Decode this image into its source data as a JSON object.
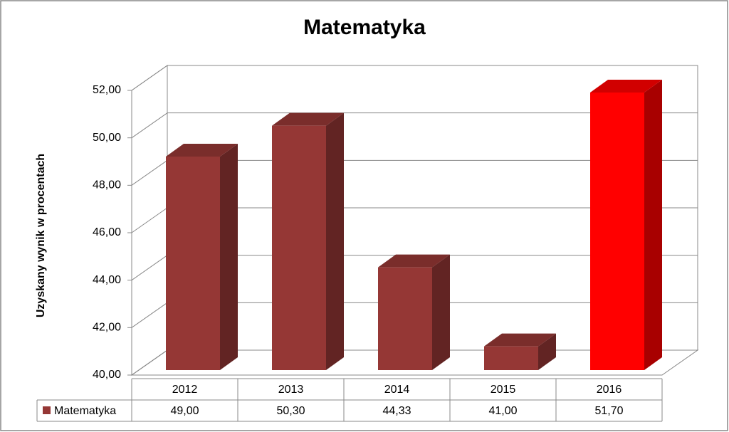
{
  "chart_data": {
    "type": "bar3d",
    "title": "Matematyka",
    "y_label": "Uzyskany wynik w procentach",
    "categories": [
      "2012",
      "2013",
      "2014",
      "2015",
      "2016"
    ],
    "series": [
      {
        "name": "Matematyka",
        "colors": [
          "#953735",
          "#953735",
          "#953735",
          "#953735",
          "#ff0000"
        ],
        "values": [
          49.0,
          50.3,
          44.33,
          41.0,
          51.7
        ],
        "value_labels": [
          "49,00",
          "50,30",
          "44,33",
          "41,00",
          "51,70"
        ]
      }
    ],
    "ylim": [
      40,
      52
    ],
    "yticks": [
      {
        "value": 40,
        "label": "40,00"
      },
      {
        "value": 42,
        "label": "42,00"
      },
      {
        "value": 44,
        "label": "44,00"
      },
      {
        "value": 46,
        "label": "46,00"
      },
      {
        "value": 48,
        "label": "48,00"
      },
      {
        "value": 50,
        "label": "50,00"
      },
      {
        "value": 52,
        "label": "52,00"
      }
    ],
    "grid": true,
    "data_table": true
  }
}
